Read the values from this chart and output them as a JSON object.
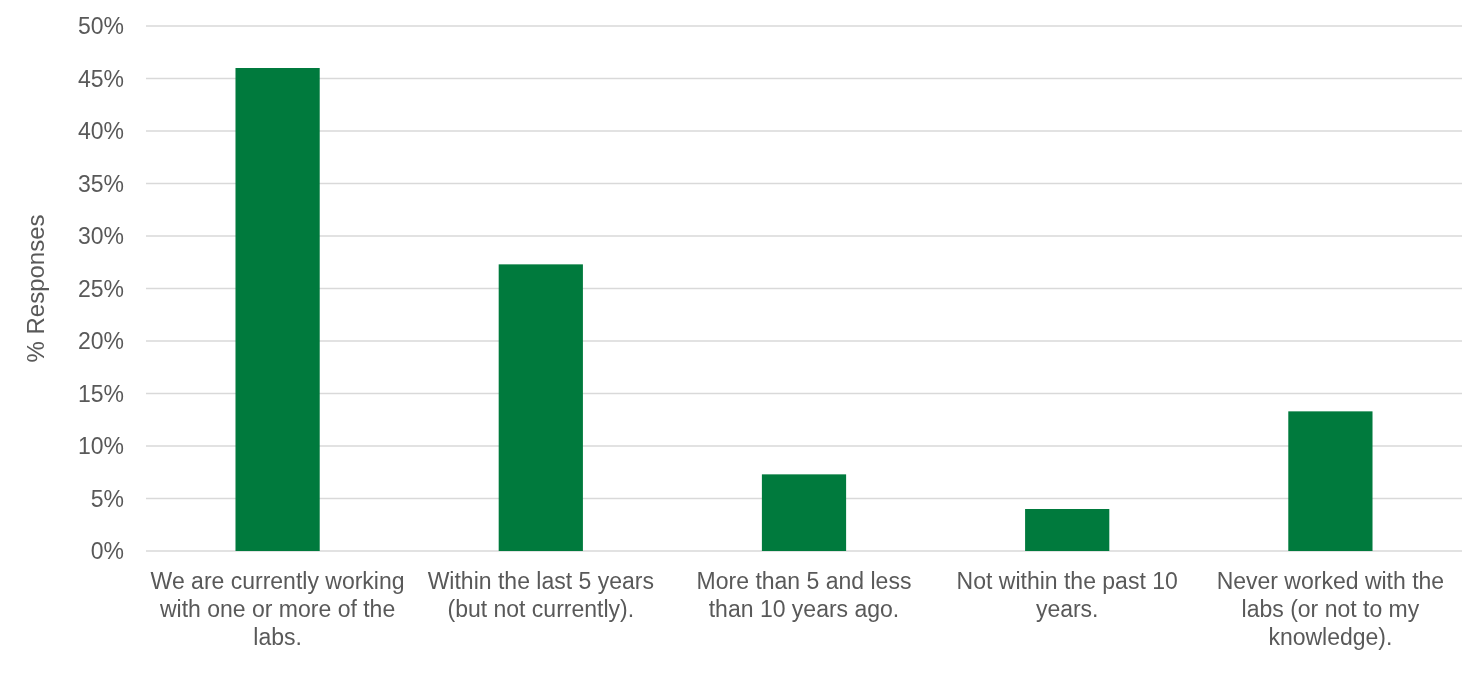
{
  "chart_data": {
    "type": "bar",
    "ylabel": "% Responses",
    "categories": [
      "We are currently working with one or more of the labs.",
      "Within the last 5 years (but not currently).",
      "More than 5 and less than 10 years ago.",
      "Not within the past 10 years.",
      "Never worked with the labs (or not to my knowledge)."
    ],
    "values": [
      46.0,
      27.3,
      7.3,
      4.0,
      13.3
    ],
    "color": "#007a3d",
    "ylim": [
      0,
      50
    ],
    "yticks": [
      {
        "value": 0,
        "label": "0%"
      },
      {
        "value": 5,
        "label": "5%"
      },
      {
        "value": 10,
        "label": "10%"
      },
      {
        "value": 15,
        "label": "15%"
      },
      {
        "value": 20,
        "label": "20%"
      },
      {
        "value": 25,
        "label": "25%"
      },
      {
        "value": 30,
        "label": "30%"
      },
      {
        "value": 35,
        "label": "35%"
      },
      {
        "value": 40,
        "label": "40%"
      },
      {
        "value": 45,
        "label": "45%"
      },
      {
        "value": 50,
        "label": "50%"
      }
    ],
    "grid": "y"
  }
}
